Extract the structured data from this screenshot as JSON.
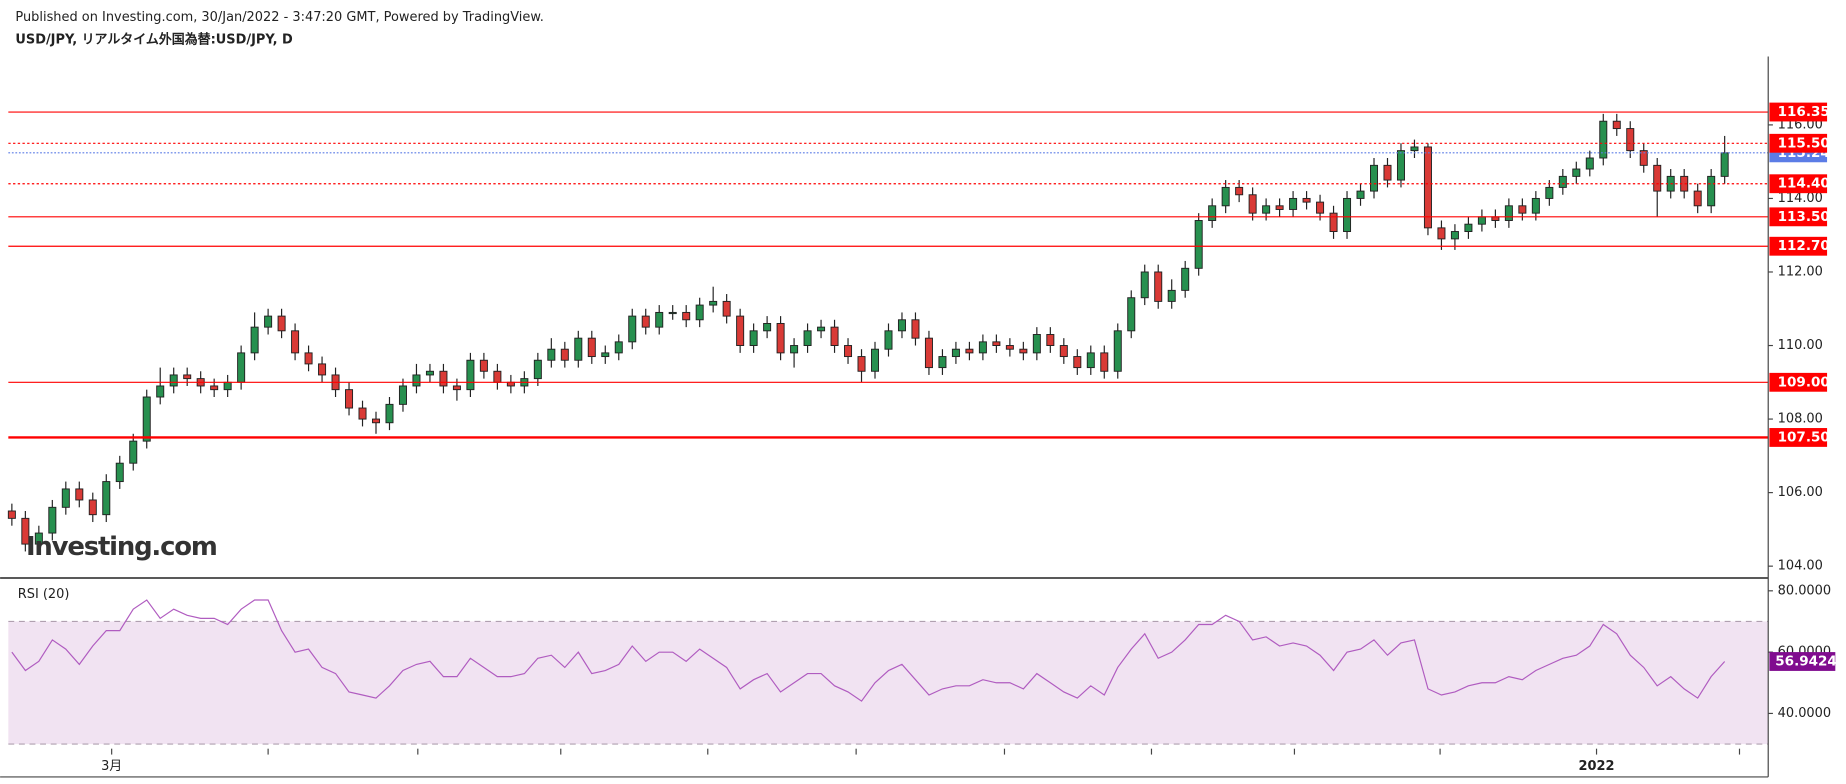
{
  "header": {
    "published": "Published on Investing.com, 30/Jan/2022 - 3:47:20 GMT, Powered by TradingView.",
    "symbol": "USD/JPY, リアルタイム外国為替:USD/JPY, D",
    "watermark": "Investing.com"
  },
  "chart_data": [
    {
      "type": "candlestick",
      "up_color": "#27904f",
      "down_color": "#d93a36",
      "last_color": "#5b7ce6",
      "ylim": [
        103.71,
        117.86
      ],
      "yticks": [
        {
          "value": 104,
          "label": "104.00"
        },
        {
          "value": 106,
          "label": "106.00"
        },
        {
          "value": 108,
          "label": "108.00"
        },
        {
          "value": 110,
          "label": "110.00"
        },
        {
          "value": 112,
          "label": "112.00"
        },
        {
          "value": 114,
          "label": "114.00"
        },
        {
          "value": 116,
          "label": "116.00"
        }
      ],
      "levels": [
        {
          "value": 116.35,
          "style": "solid"
        },
        {
          "value": {
            "value": 115.5,
            "label": "115.50"
          },
          "style": "dotted"
        },
        {
          "value": {
            "value": 114.4,
            "label": "114.40"
          },
          "style": "dotted"
        },
        {
          "value": {
            "value": 113.5,
            "label": "113.50"
          },
          "style": "solid"
        },
        {
          "value": {
            "value": 112.7,
            "label": "112.70"
          },
          "style": "solid"
        },
        {
          "value": {
            "value": 109,
            "label": "109.00"
          },
          "style": "solid"
        },
        {
          "value": {
            "value": 107.5,
            "label": "107.50"
          },
          "style": "thick"
        }
      ],
      "level_color": "#f00",
      "xticks": [
        {
          "value": 7.4,
          "label": "3月"
        },
        {
          "value": 117.5,
          "label": "2022"
        }
      ],
      "x_minor_ticks": [
        19,
        30.1,
        40.7,
        51.6,
        62.6,
        73.6,
        84.5,
        95.1,
        105.9,
        128.1
      ],
      "open": [
        105.5,
        105.3,
        104.6,
        104.9,
        105.6,
        106.1,
        105.8,
        105.4,
        106.3,
        106.8,
        107.4,
        108.6,
        108.9,
        109.2,
        109.1,
        108.9,
        108.8,
        109.0,
        109.8,
        110.5,
        110.8,
        110.4,
        109.8,
        109.5,
        109.2,
        108.8,
        108.3,
        108.0,
        107.9,
        108.4,
        108.9,
        109.2,
        109.3,
        108.9,
        108.8,
        109.6,
        109.3,
        109.0,
        108.9,
        109.1,
        109.6,
        109.9,
        109.6,
        110.2,
        109.7,
        109.8,
        110.1,
        110.8,
        110.5,
        110.9,
        110.9,
        110.7,
        111.1,
        111.2,
        110.8,
        110.0,
        110.4,
        110.6,
        109.8,
        110.0,
        110.4,
        110.5,
        110.0,
        109.7,
        109.3,
        109.9,
        110.4,
        110.7,
        110.2,
        109.4,
        109.7,
        109.9,
        109.8,
        110.1,
        110.0,
        109.9,
        109.8,
        110.3,
        110.0,
        109.7,
        109.4,
        109.8,
        109.3,
        110.4,
        111.3,
        112.0,
        111.2,
        111.5,
        112.1,
        113.4,
        113.8,
        114.3,
        114.1,
        113.6,
        113.8,
        113.7,
        114.0,
        113.9,
        113.6,
        113.1,
        114.0,
        114.2,
        114.9,
        114.5,
        115.3,
        115.4,
        113.2,
        112.9,
        113.1,
        113.3,
        113.5,
        113.4,
        113.8,
        113.6,
        114.0,
        114.3,
        114.6,
        114.8,
        115.1,
        116.1,
        115.9,
        115.3,
        114.9,
        114.2,
        114.6,
        114.2,
        113.8,
        114.6
      ],
      "high": [
        105.7,
        105.5,
        105.1,
        105.8,
        106.3,
        106.3,
        106.0,
        106.5,
        107.0,
        107.6,
        108.8,
        109.4,
        109.4,
        109.4,
        109.3,
        109.1,
        109.2,
        110.0,
        110.9,
        111.0,
        111.0,
        110.6,
        110.0,
        109.7,
        109.4,
        109.0,
        108.5,
        108.2,
        108.6,
        109.1,
        109.5,
        109.5,
        109.5,
        109.1,
        109.8,
        109.8,
        109.5,
        109.2,
        109.3,
        109.8,
        110.2,
        110.1,
        110.4,
        110.4,
        110.0,
        110.3,
        111.0,
        111.0,
        111.1,
        111.1,
        111.1,
        111.3,
        111.6,
        111.4,
        111.0,
        110.6,
        110.8,
        110.8,
        110.2,
        110.6,
        110.7,
        110.7,
        110.2,
        109.9,
        110.1,
        110.6,
        110.9,
        110.9,
        110.4,
        109.9,
        110.1,
        110.1,
        110.3,
        110.3,
        110.2,
        110.1,
        110.5,
        110.5,
        110.2,
        109.9,
        110.0,
        110.0,
        110.6,
        111.5,
        112.2,
        112.2,
        111.8,
        112.3,
        113.6,
        114.0,
        114.5,
        114.5,
        114.3,
        114.0,
        114.0,
        114.2,
        114.2,
        114.1,
        113.8,
        114.2,
        114.4,
        115.1,
        115.1,
        115.5,
        115.6,
        115.5,
        113.4,
        113.3,
        113.5,
        113.7,
        113.7,
        114.0,
        114.0,
        114.2,
        114.5,
        114.8,
        115.0,
        115.3,
        116.3,
        116.3,
        116.1,
        115.5,
        115.1,
        114.8,
        114.8,
        114.4,
        114.8,
        115.7
      ],
      "low": [
        105.1,
        104.4,
        104.4,
        104.7,
        105.4,
        105.6,
        105.2,
        105.2,
        106.1,
        106.6,
        107.2,
        108.4,
        108.7,
        108.9,
        108.7,
        108.6,
        108.6,
        108.8,
        109.6,
        110.3,
        110.2,
        109.6,
        109.3,
        109.0,
        108.6,
        108.1,
        107.8,
        107.6,
        107.7,
        108.2,
        108.7,
        109.0,
        108.7,
        108.5,
        108.6,
        109.1,
        108.8,
        108.7,
        108.7,
        108.9,
        109.4,
        109.4,
        109.4,
        109.5,
        109.5,
        109.6,
        109.9,
        110.3,
        110.3,
        110.7,
        110.5,
        110.5,
        110.9,
        110.6,
        109.8,
        109.8,
        110.2,
        109.6,
        109.4,
        109.8,
        110.2,
        109.8,
        109.5,
        109.0,
        109.1,
        109.7,
        110.2,
        110.0,
        109.2,
        109.2,
        109.5,
        109.6,
        109.6,
        109.8,
        109.7,
        109.6,
        109.6,
        109.8,
        109.5,
        109.2,
        109.2,
        109.1,
        109.1,
        110.2,
        111.1,
        111.0,
        111.0,
        111.3,
        111.9,
        113.2,
        113.6,
        113.9,
        113.4,
        113.4,
        113.5,
        113.5,
        113.7,
        113.4,
        112.9,
        112.9,
        113.8,
        114.0,
        114.3,
        114.3,
        115.1,
        113.0,
        112.6,
        112.6,
        112.9,
        113.1,
        113.2,
        113.2,
        113.4,
        113.4,
        113.8,
        114.1,
        114.4,
        114.6,
        114.9,
        115.7,
        115.1,
        114.7,
        113.5,
        114.0,
        114.0,
        113.6,
        113.6,
        114.4
      ],
      "close": [
        105.3,
        104.6,
        104.9,
        105.6,
        106.1,
        105.8,
        105.4,
        106.3,
        106.8,
        107.4,
        108.6,
        108.9,
        109.2,
        109.1,
        108.9,
        108.8,
        109.0,
        109.8,
        110.5,
        110.8,
        110.4,
        109.8,
        109.5,
        109.2,
        108.8,
        108.3,
        108.0,
        107.9,
        108.4,
        108.9,
        109.2,
        109.3,
        108.9,
        108.8,
        109.6,
        109.3,
        109.0,
        108.9,
        109.1,
        109.6,
        109.9,
        109.6,
        110.2,
        109.7,
        109.8,
        110.1,
        110.8,
        110.5,
        110.9,
        110.9,
        110.7,
        111.1,
        111.2,
        110.8,
        110.0,
        110.4,
        110.6,
        109.8,
        110.0,
        110.4,
        110.5,
        110.0,
        109.7,
        109.3,
        109.9,
        110.4,
        110.7,
        110.2,
        109.4,
        109.7,
        109.9,
        109.8,
        110.1,
        110.0,
        109.9,
        109.8,
        110.3,
        110.0,
        109.7,
        109.4,
        109.8,
        109.3,
        110.4,
        111.3,
        112.0,
        111.2,
        111.5,
        112.1,
        113.4,
        113.8,
        114.3,
        114.1,
        113.6,
        113.8,
        113.7,
        114.0,
        113.9,
        113.6,
        113.1,
        114.0,
        114.2,
        114.9,
        114.5,
        115.3,
        115.4,
        113.2,
        112.9,
        113.1,
        113.3,
        113.5,
        113.4,
        113.8,
        113.6,
        114.0,
        114.3,
        114.6,
        114.8,
        115.1,
        116.1,
        115.9,
        115.3,
        114.9,
        114.2,
        114.6,
        114.2,
        113.8,
        114.6,
        115.24
      ]
    },
    {
      "type": "line",
      "title": "RSI (20)",
      "color": "#b05cc0",
      "band_color": "#f1e3f2",
      "label_color": "#800c8f",
      "ylim": [
        28.5,
        83.8
      ],
      "band": [
        30,
        70
      ],
      "yticks": [
        {
          "value": 40,
          "label": "40.0000"
        },
        {
          "value": 60,
          "label": "60.0000"
        },
        {
          "value": 80,
          "label": "80.0000"
        }
      ],
      "values": [
        60,
        54,
        57,
        64,
        61,
        56,
        62,
        67,
        67,
        74,
        77,
        71,
        74,
        72,
        71,
        71,
        69,
        74,
        77,
        77,
        67,
        60,
        61,
        55,
        53,
        47,
        46,
        45,
        49,
        54,
        56,
        57,
        52,
        52,
        58,
        55,
        52,
        52,
        53,
        58,
        59,
        55,
        60,
        53,
        54,
        56,
        62,
        57,
        60,
        60,
        57,
        61,
        58,
        55,
        48,
        51,
        53,
        47,
        50,
        53,
        53,
        49,
        47,
        44,
        50,
        54,
        56,
        51,
        46,
        48,
        49,
        49,
        51,
        50,
        50,
        48,
        53,
        50,
        47,
        45,
        49,
        46,
        55,
        61,
        66,
        58,
        60,
        64,
        69,
        69,
        72,
        70,
        64,
        65,
        62,
        63,
        62,
        59,
        54,
        60,
        61,
        64,
        59,
        63,
        64,
        48,
        46,
        47,
        49,
        50,
        50,
        52,
        51,
        54,
        56,
        58,
        59,
        62,
        69,
        66,
        59,
        55,
        49,
        52,
        48,
        45,
        52,
        56.9424
      ]
    }
  ]
}
